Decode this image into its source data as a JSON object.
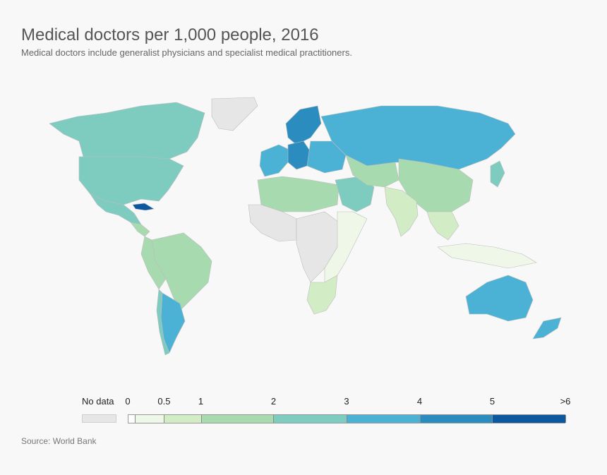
{
  "header": {
    "title": "Medical doctors per 1,000 people, 2016",
    "subtitle": "Medical doctors include generalist physicians and specialist medical practitioners."
  },
  "legend": {
    "no_data_label": "No data",
    "no_data_color": "#e6e6e6",
    "ticks": [
      "0",
      "0.5",
      "1",
      "2",
      "3",
      "4",
      "5",
      ">6"
    ],
    "bins": [
      {
        "from": 0,
        "to": 0.5,
        "color": "#eef7e8"
      },
      {
        "from": 0.5,
        "to": 1,
        "color": "#d2ecc6"
      },
      {
        "from": 1,
        "to": 2,
        "color": "#a8dab0"
      },
      {
        "from": 2,
        "to": 3,
        "color": "#7ecbc0"
      },
      {
        "from": 3,
        "to": 4,
        "color": "#4cb2d5"
      },
      {
        "from": 4,
        "to": 5,
        "color": "#2b8cc0"
      },
      {
        "from": 5,
        "to": 6,
        "color": "#0b589e"
      }
    ]
  },
  "map": {
    "regions": [
      {
        "name": "Greenland",
        "bin": "nodata"
      },
      {
        "name": "Canada",
        "bin": 2.5
      },
      {
        "name": "United States",
        "bin": 2.5
      },
      {
        "name": "Mexico",
        "bin": 2.5
      },
      {
        "name": "Cuba",
        "bin": 5.5
      },
      {
        "name": "Central America",
        "bin": 1.5
      },
      {
        "name": "Brazil",
        "bin": 1.5
      },
      {
        "name": "Andean South America",
        "bin": 1.5
      },
      {
        "name": "Argentina",
        "bin": 3.5
      },
      {
        "name": "Chile",
        "bin": 2.5
      },
      {
        "name": "Russia",
        "bin": 3.5
      },
      {
        "name": "Scandinavia",
        "bin": 4.5
      },
      {
        "name": "Western Europe",
        "bin": 3.5
      },
      {
        "name": "Central Europe",
        "bin": 4.5
      },
      {
        "name": "Eastern Europe",
        "bin": 3.5
      },
      {
        "name": "North Africa",
        "bin": 1.5
      },
      {
        "name": "West Africa",
        "bin": "nodata"
      },
      {
        "name": "Central Africa",
        "bin": "nodata"
      },
      {
        "name": "East Africa",
        "bin": 0.25
      },
      {
        "name": "Southern Africa",
        "bin": 0.75
      },
      {
        "name": "Middle East",
        "bin": 2.5
      },
      {
        "name": "Central Asia",
        "bin": 1.5
      },
      {
        "name": "China",
        "bin": 1.5
      },
      {
        "name": "India",
        "bin": 0.75
      },
      {
        "name": "Southeast Asia",
        "bin": 0.75
      },
      {
        "name": "Indonesia",
        "bin": 0.25
      },
      {
        "name": "Japan",
        "bin": 2.5
      },
      {
        "name": "Australia",
        "bin": 3.5
      },
      {
        "name": "New Zealand",
        "bin": 3.5
      }
    ]
  },
  "footer": {
    "source": "Source: World Bank"
  }
}
